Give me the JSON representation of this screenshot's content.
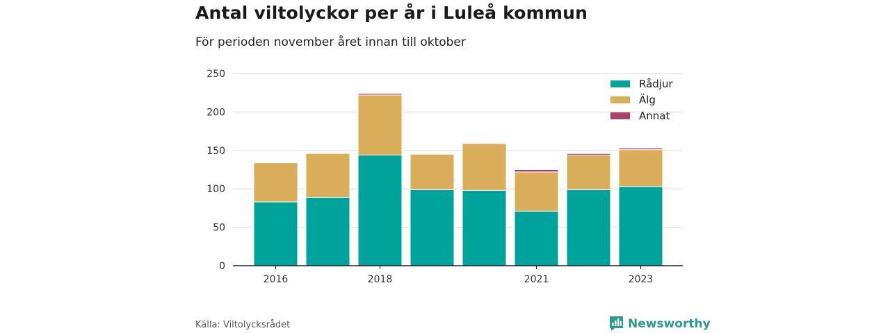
{
  "header": {
    "title": "Antal viltolyckor per år i Luleå kommun",
    "subtitle": "För perioden november året innan till oktober"
  },
  "footer": {
    "source": "Källa: Viltolycksrådet",
    "brand": "Newsworthy",
    "brand_icon": "newsworthy-logo-icon"
  },
  "chart_data": {
    "type": "bar",
    "stacked": true,
    "categories": [
      "2016",
      "2017",
      "2018",
      "2019",
      "2020",
      "2021",
      "2022",
      "2023"
    ],
    "x_tick_labels": [
      "2016",
      "",
      "2018",
      "",
      "",
      "2021",
      "",
      "2023"
    ],
    "series": [
      {
        "name": "Rådjur",
        "color": "#00a399",
        "values": [
          83,
          89,
          144,
          99,
          98,
          71,
          99,
          103
        ]
      },
      {
        "name": "Älg",
        "color": "#d9ad5a",
        "values": [
          51,
          57,
          78,
          46,
          61,
          51,
          45,
          48
        ]
      },
      {
        "name": "Annat",
        "color": "#a8426b",
        "values": [
          0,
          0,
          2,
          0,
          0,
          3,
          2,
          2
        ]
      }
    ],
    "y_ticks": [
      0,
      50,
      100,
      150,
      200,
      250
    ],
    "ylim": [
      0,
      250
    ],
    "xlabel": "",
    "ylabel": "",
    "grid": true,
    "legend_position": "top-right"
  }
}
